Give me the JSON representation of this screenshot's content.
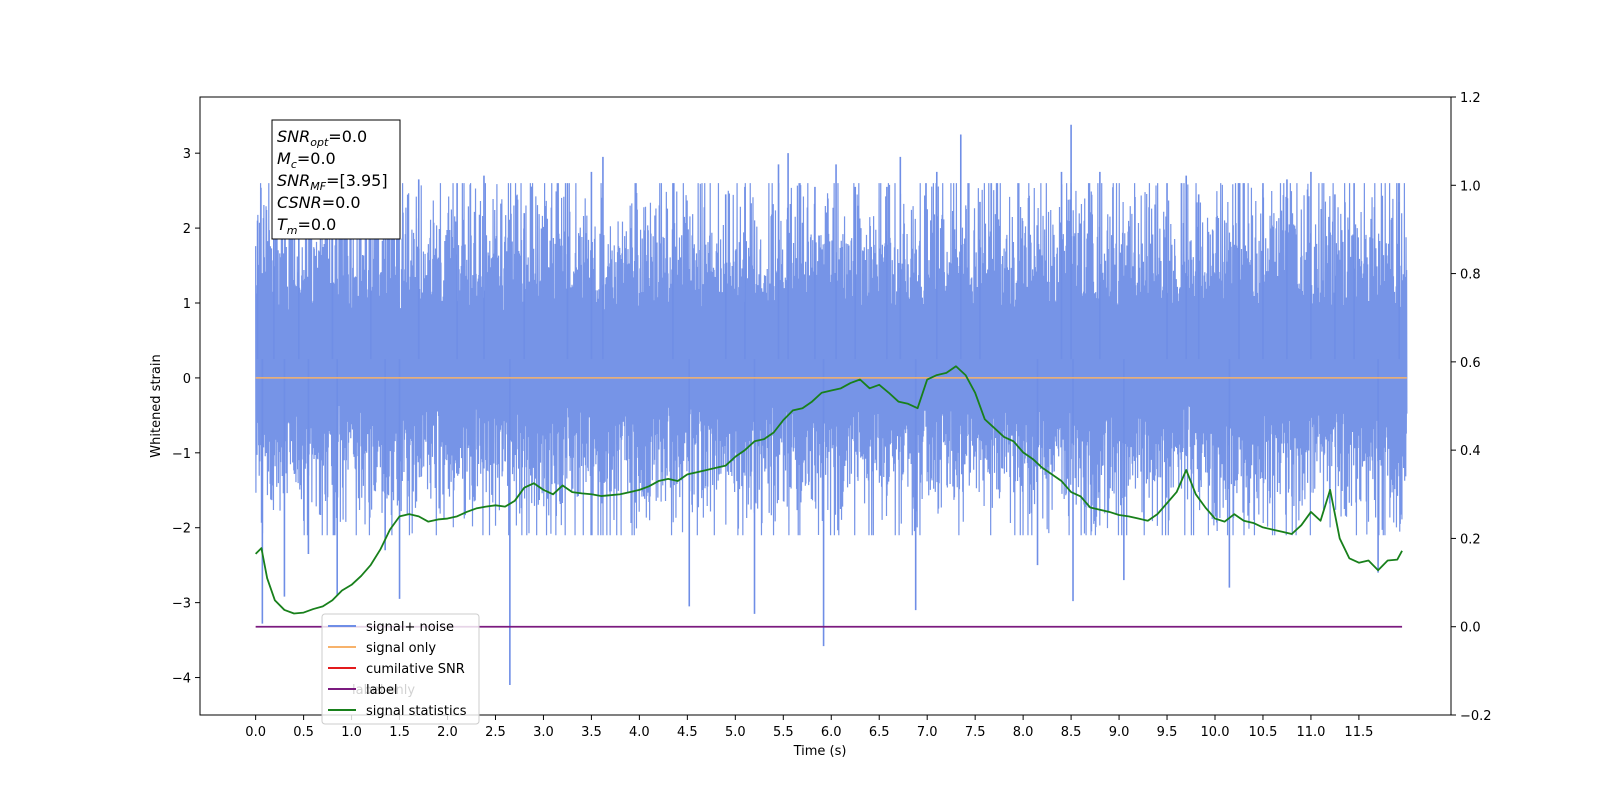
{
  "chart_data": {
    "type": "line",
    "xlabel": "Time (s)",
    "ylabel": "Whitened strain",
    "xlim": [
      -0.58,
      12.46
    ],
    "ylim": [
      -4.5,
      3.75
    ],
    "y2lim": [
      -0.2,
      1.2
    ],
    "x_ticks": [
      0.0,
      0.5,
      1.0,
      1.5,
      2.0,
      2.5,
      3.0,
      3.5,
      4.0,
      4.5,
      5.0,
      5.5,
      6.0,
      6.5,
      7.0,
      7.5,
      8.0,
      8.5,
      9.0,
      9.5,
      10.0,
      10.5,
      11.0,
      11.5
    ],
    "x_tick_labels": [
      "0.0",
      "0.5",
      "1.0",
      "1.5",
      "2.0",
      "2.5",
      "3.0",
      "3.5",
      "4.0",
      "4.5",
      "5.0",
      "5.5",
      "6.0",
      "6.5",
      "7.0",
      "7.5",
      "8.0",
      "8.5",
      "9.0",
      "9.5",
      "10.0",
      "10.5",
      "11.0",
      "11.5"
    ],
    "y_ticks": [
      3,
      2,
      1,
      0,
      -1,
      -2,
      -3,
      -4
    ],
    "y_tick_labels": [
      "3",
      "2",
      "1",
      "0",
      "−1",
      "−2",
      "−3",
      "−4"
    ],
    "y2_ticks": [
      1.2,
      1.0,
      0.8,
      0.6,
      0.4,
      0.2,
      0.0,
      -0.2
    ],
    "y2_tick_labels": [
      "1.2",
      "1.0",
      "0.8",
      "0.6",
      "0.4",
      "0.2",
      "0.0",
      "−0.2"
    ],
    "legend_position": "lower-left",
    "grid": false,
    "series": [
      {
        "name": "signal+ noise",
        "color": "#6f8ee6",
        "axis": "left",
        "x_range": [
          0.0,
          12.0
        ],
        "typical_range": [
          -1.7,
          2.2
        ],
        "note_values": "dense noise",
        "spikes": [
          [
            0.02,
            2.1
          ],
          [
            0.07,
            -3.28
          ],
          [
            0.19,
            2.25
          ],
          [
            0.3,
            -2.92
          ],
          [
            0.45,
            2.45
          ],
          [
            0.55,
            -2.35
          ],
          [
            0.8,
            2.35
          ],
          [
            0.85,
            -2.9
          ],
          [
            1.2,
            2.6
          ],
          [
            1.35,
            -2.3
          ],
          [
            1.5,
            -2.95
          ],
          [
            1.7,
            2.65
          ],
          [
            2.1,
            2.6
          ],
          [
            2.38,
            2.7
          ],
          [
            2.65,
            -4.1
          ],
          [
            2.8,
            2.2
          ],
          [
            3.25,
            2.6
          ],
          [
            3.5,
            2.75
          ],
          [
            3.62,
            2.95
          ],
          [
            4.35,
            2.6
          ],
          [
            4.52,
            -3.05
          ],
          [
            4.9,
            2.45
          ],
          [
            5.1,
            2.55
          ],
          [
            5.2,
            -3.15
          ],
          [
            5.45,
            2.85
          ],
          [
            5.55,
            3.0
          ],
          [
            5.83,
            2.55
          ],
          [
            5.92,
            -3.58
          ],
          [
            6.05,
            2.85
          ],
          [
            6.25,
            2.55
          ],
          [
            6.58,
            2.55
          ],
          [
            6.72,
            2.95
          ],
          [
            6.88,
            -3.1
          ],
          [
            7.1,
            2.75
          ],
          [
            7.35,
            3.25
          ],
          [
            7.55,
            2.35
          ],
          [
            8.15,
            -2.5
          ],
          [
            8.4,
            2.75
          ],
          [
            8.5,
            3.38
          ],
          [
            8.52,
            -2.98
          ],
          [
            8.8,
            2.75
          ],
          [
            9.05,
            -2.7
          ],
          [
            9.5,
            2.6
          ],
          [
            9.7,
            2.7
          ],
          [
            9.83,
            2.45
          ],
          [
            10.15,
            -2.8
          ],
          [
            10.25,
            2.6
          ],
          [
            10.5,
            2.6
          ],
          [
            10.75,
            2.65
          ],
          [
            11.0,
            2.75
          ],
          [
            11.25,
            2.45
          ],
          [
            11.45,
            2.6
          ],
          [
            11.7,
            -2.6
          ],
          [
            11.92,
            2.35
          ]
        ]
      },
      {
        "name": "signal only",
        "color": "#f7b26b",
        "axis": "left",
        "x": [
          0.0,
          12.0
        ],
        "y": [
          0.0,
          0.0
        ]
      },
      {
        "name": "cumilative SNR",
        "color": "#e31a1c",
        "axis": "right",
        "x": [],
        "y": []
      },
      {
        "name": "label",
        "color": "#7b1a7f",
        "axis": "right",
        "x": [
          0.0,
          11.95
        ],
        "y": [
          0.0,
          0.0
        ]
      },
      {
        "name": "signal statistics",
        "color": "#18801b",
        "axis": "right",
        "x": [
          0.0,
          0.06,
          0.12,
          0.2,
          0.3,
          0.4,
          0.5,
          0.6,
          0.7,
          0.8,
          0.9,
          1.0,
          1.1,
          1.2,
          1.3,
          1.4,
          1.5,
          1.6,
          1.7,
          1.8,
          1.9,
          2.0,
          2.1,
          2.2,
          2.3,
          2.4,
          2.5,
          2.6,
          2.7,
          2.8,
          2.9,
          3.0,
          3.1,
          3.2,
          3.3,
          3.4,
          3.5,
          3.6,
          3.7,
          3.8,
          3.9,
          4.0,
          4.1,
          4.2,
          4.3,
          4.4,
          4.5,
          4.6,
          4.7,
          4.8,
          4.9,
          5.0,
          5.1,
          5.2,
          5.3,
          5.4,
          5.5,
          5.6,
          5.7,
          5.8,
          5.9,
          6.0,
          6.1,
          6.2,
          6.3,
          6.4,
          6.5,
          6.6,
          6.7,
          6.8,
          6.9,
          7.0,
          7.1,
          7.2,
          7.3,
          7.4,
          7.5,
          7.6,
          7.7,
          7.8,
          7.9,
          8.0,
          8.1,
          8.2,
          8.3,
          8.4,
          8.5,
          8.6,
          8.7,
          8.8,
          8.9,
          9.0,
          9.1,
          9.2,
          9.3,
          9.4,
          9.5,
          9.6,
          9.7,
          9.8,
          9.9,
          10.0,
          10.1,
          10.2,
          10.3,
          10.4,
          10.5,
          10.6,
          10.7,
          10.8,
          10.9,
          11.0,
          11.1,
          11.2,
          11.3,
          11.4,
          11.5,
          11.6,
          11.7,
          11.8,
          11.9,
          11.95
        ],
        "y": [
          0.165,
          0.178,
          0.11,
          0.06,
          0.038,
          0.03,
          0.032,
          0.04,
          0.046,
          0.06,
          0.082,
          0.095,
          0.115,
          0.14,
          0.175,
          0.22,
          0.25,
          0.255,
          0.25,
          0.238,
          0.243,
          0.245,
          0.25,
          0.26,
          0.268,
          0.272,
          0.275,
          0.272,
          0.285,
          0.315,
          0.325,
          0.31,
          0.3,
          0.32,
          0.305,
          0.302,
          0.3,
          0.296,
          0.298,
          0.3,
          0.305,
          0.31,
          0.318,
          0.33,
          0.335,
          0.33,
          0.345,
          0.35,
          0.355,
          0.36,
          0.365,
          0.385,
          0.4,
          0.42,
          0.425,
          0.44,
          0.468,
          0.49,
          0.495,
          0.51,
          0.53,
          0.535,
          0.54,
          0.552,
          0.56,
          0.54,
          0.548,
          0.53,
          0.51,
          0.505,
          0.495,
          0.56,
          0.57,
          0.575,
          0.59,
          0.57,
          0.53,
          0.47,
          0.45,
          0.43,
          0.42,
          0.395,
          0.38,
          0.36,
          0.345,
          0.33,
          0.305,
          0.295,
          0.27,
          0.265,
          0.26,
          0.253,
          0.25,
          0.245,
          0.24,
          0.255,
          0.28,
          0.305,
          0.355,
          0.3,
          0.27,
          0.245,
          0.238,
          0.255,
          0.24,
          0.235,
          0.225,
          0.22,
          0.215,
          0.21,
          0.23,
          0.26,
          0.24,
          0.31,
          0.2,
          0.155,
          0.145,
          0.15,
          0.128,
          0.15,
          0.152,
          0.172
        ]
      }
    ],
    "annotation_lines": [
      {
        "main": "SNR",
        "sub": "opt",
        "rest": "=0.0"
      },
      {
        "main": "M",
        "sub": "c",
        "rest": "=0.0"
      },
      {
        "main": "SNR",
        "sub": "MF",
        "rest": "=[3.95]"
      },
      {
        "main": "CSNR",
        "sub": "",
        "rest": "=0.0"
      },
      {
        "main": "T",
        "sub": "m",
        "rest": "=0.0"
      }
    ],
    "legend_entries": [
      "signal+ noise",
      "signal only",
      "cumilative SNR",
      "label",
      "signal statistics"
    ],
    "legend_occluded_text": "label only"
  }
}
